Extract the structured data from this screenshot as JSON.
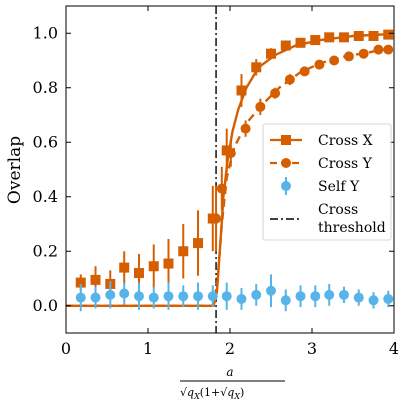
{
  "chart_data": {
    "type": "scatter",
    "ylabel": "Overlap",
    "xlabel": {
      "numerator": "a",
      "denominator": "√(√q_X(1+√q_X))",
      "den_outer": "√",
      "den_q1": "q",
      "den_q1_sub": "X",
      "den_mid": "(1+",
      "den_q2": "q",
      "den_q2_sub": "X",
      "den_close": ")"
    },
    "xlim": [
      0,
      4
    ],
    "ylim": [
      -0.1,
      1.1
    ],
    "xticks": [
      0,
      1,
      2,
      3,
      4
    ],
    "xtick_labels": [
      "0",
      "1",
      "2",
      "3",
      "4"
    ],
    "yticks": [
      0.0,
      0.2,
      0.4,
      0.6,
      0.8,
      1.0
    ],
    "ytick_labels": [
      "0.0",
      "0.2",
      "0.4",
      "0.6",
      "0.8",
      "1.0"
    ],
    "grid": false,
    "legend_position": "center-right",
    "threshold": {
      "x": 1.83,
      "label_line1": "Cross",
      "label_line2": "threshold"
    },
    "colors": {
      "orange": "#d55e00",
      "blue": "#56b4e9",
      "black": "#000000"
    },
    "series": [
      {
        "name": "Cross X",
        "marker": "square",
        "color": "#d55e00",
        "points": [
          {
            "x": 0.18,
            "y": 0.085,
            "err": 0.03
          },
          {
            "x": 0.36,
            "y": 0.095,
            "err": 0.05
          },
          {
            "x": 0.54,
            "y": 0.08,
            "err": 0.05
          },
          {
            "x": 0.71,
            "y": 0.14,
            "err": 0.06
          },
          {
            "x": 0.89,
            "y": 0.12,
            "err": 0.07
          },
          {
            "x": 1.07,
            "y": 0.145,
            "err": 0.08
          },
          {
            "x": 1.25,
            "y": 0.155,
            "err": 0.09
          },
          {
            "x": 1.43,
            "y": 0.2,
            "err": 0.1
          },
          {
            "x": 1.61,
            "y": 0.23,
            "err": 0.12
          },
          {
            "x": 1.79,
            "y": 0.32,
            "err": 0.12
          },
          {
            "x": 1.96,
            "y": 0.57,
            "err": 0.08
          },
          {
            "x": 2.14,
            "y": 0.79,
            "err": 0.06
          },
          {
            "x": 2.32,
            "y": 0.875,
            "err": 0.03
          },
          {
            "x": 2.5,
            "y": 0.925,
            "err": 0.02
          },
          {
            "x": 2.68,
            "y": 0.955,
            "err": 0.015
          },
          {
            "x": 2.86,
            "y": 0.965,
            "err": 0.01
          },
          {
            "x": 3.04,
            "y": 0.975,
            "err": 0.01
          },
          {
            "x": 3.21,
            "y": 0.985,
            "err": 0.01
          },
          {
            "x": 3.39,
            "y": 0.985,
            "err": 0.005
          },
          {
            "x": 3.57,
            "y": 0.99,
            "err": 0.005
          },
          {
            "x": 3.75,
            "y": 0.99,
            "err": 0.005
          },
          {
            "x": 3.93,
            "y": 0.995,
            "err": 0.005
          }
        ],
        "curve": [
          [
            0,
            0.0
          ],
          [
            1.8,
            0.0
          ],
          [
            1.84,
            0.05
          ],
          [
            1.88,
            0.22
          ],
          [
            1.92,
            0.4
          ],
          [
            1.97,
            0.53
          ],
          [
            2.03,
            0.64
          ],
          [
            2.1,
            0.72
          ],
          [
            2.2,
            0.8
          ],
          [
            2.35,
            0.875
          ],
          [
            2.55,
            0.92
          ],
          [
            2.8,
            0.955
          ],
          [
            3.1,
            0.975
          ],
          [
            3.5,
            0.99
          ],
          [
            3.95,
            0.997
          ]
        ]
      },
      {
        "name": "Cross Y",
        "marker": "circle",
        "color": "#d55e00",
        "points": [
          {
            "x": 1.83,
            "y": 0.32,
            "err": 0.12
          },
          {
            "x": 1.9,
            "y": 0.43,
            "err": 0.08
          },
          {
            "x": 2.01,
            "y": 0.56,
            "err": 0.05
          },
          {
            "x": 2.19,
            "y": 0.65,
            "err": 0.03
          },
          {
            "x": 2.37,
            "y": 0.73,
            "err": 0.03
          },
          {
            "x": 2.55,
            "y": 0.78,
            "err": 0.02
          },
          {
            "x": 2.73,
            "y": 0.83,
            "err": 0.02
          },
          {
            "x": 2.91,
            "y": 0.86,
            "err": 0.015
          },
          {
            "x": 3.09,
            "y": 0.885,
            "err": 0.01
          },
          {
            "x": 3.27,
            "y": 0.9,
            "err": 0.01
          },
          {
            "x": 3.45,
            "y": 0.915,
            "err": 0.01
          },
          {
            "x": 3.63,
            "y": 0.925,
            "err": 0.01
          },
          {
            "x": 3.81,
            "y": 0.94,
            "err": 0.01
          },
          {
            "x": 3.93,
            "y": 0.94,
            "err": 0.01
          }
        ],
        "curve": [
          [
            0,
            0.0
          ],
          [
            1.8,
            0.0
          ],
          [
            1.85,
            0.1
          ],
          [
            1.9,
            0.3
          ],
          [
            1.96,
            0.47
          ],
          [
            2.05,
            0.58
          ],
          [
            2.2,
            0.67
          ],
          [
            2.4,
            0.74
          ],
          [
            2.6,
            0.8
          ],
          [
            2.85,
            0.855
          ],
          [
            3.1,
            0.89
          ],
          [
            3.4,
            0.915
          ],
          [
            3.7,
            0.93
          ],
          [
            3.95,
            0.945
          ]
        ]
      },
      {
        "name": "Self Y",
        "marker": "circle",
        "color": "#56b4e9",
        "points": [
          {
            "x": 0.18,
            "y": 0.03,
            "err": 0.05
          },
          {
            "x": 0.36,
            "y": 0.03,
            "err": 0.04
          },
          {
            "x": 0.54,
            "y": 0.04,
            "err": 0.05
          },
          {
            "x": 0.71,
            "y": 0.045,
            "err": 0.04
          },
          {
            "x": 0.89,
            "y": 0.035,
            "err": 0.05
          },
          {
            "x": 1.07,
            "y": 0.03,
            "err": 0.04
          },
          {
            "x": 1.25,
            "y": 0.035,
            "err": 0.05
          },
          {
            "x": 1.43,
            "y": 0.035,
            "err": 0.04
          },
          {
            "x": 1.61,
            "y": 0.035,
            "err": 0.05
          },
          {
            "x": 1.79,
            "y": 0.035,
            "err": 0.04
          },
          {
            "x": 1.96,
            "y": 0.035,
            "err": 0.05
          },
          {
            "x": 2.14,
            "y": 0.025,
            "err": 0.04
          },
          {
            "x": 2.32,
            "y": 0.04,
            "err": 0.04
          },
          {
            "x": 2.5,
            "y": 0.055,
            "err": 0.06
          },
          {
            "x": 2.68,
            "y": 0.02,
            "err": 0.04
          },
          {
            "x": 2.86,
            "y": 0.035,
            "err": 0.04
          },
          {
            "x": 3.04,
            "y": 0.035,
            "err": 0.04
          },
          {
            "x": 3.21,
            "y": 0.04,
            "err": 0.04
          },
          {
            "x": 3.39,
            "y": 0.04,
            "err": 0.03
          },
          {
            "x": 3.57,
            "y": 0.03,
            "err": 0.03
          },
          {
            "x": 3.75,
            "y": 0.02,
            "err": 0.03
          },
          {
            "x": 3.93,
            "y": 0.025,
            "err": 0.03
          }
        ]
      }
    ]
  }
}
